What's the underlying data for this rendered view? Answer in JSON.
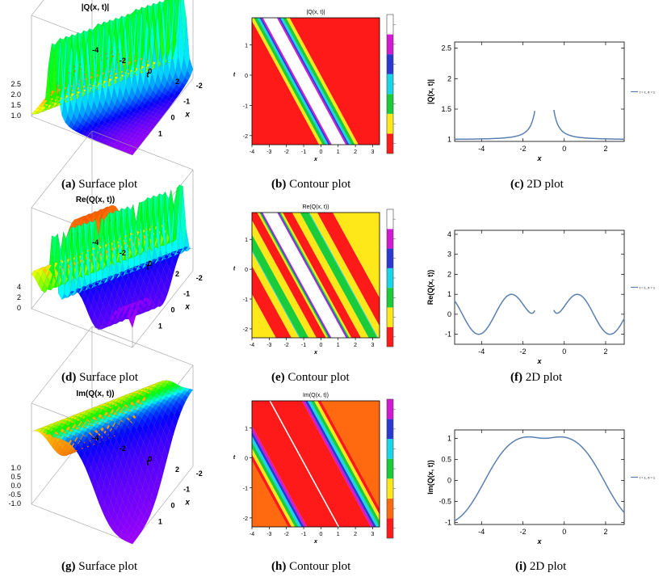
{
  "captions": {
    "a": {
      "tag": "(a)",
      "label": "Surface plot"
    },
    "b": {
      "tag": "(b)",
      "label": "Contour plot"
    },
    "c": {
      "tag": "(c)",
      "label": "2D plot"
    },
    "d": {
      "tag": "(d)",
      "label": "Surface plot"
    },
    "e": {
      "tag": "(e)",
      "label": "Contour plot"
    },
    "f": {
      "tag": "(f)",
      "label": "2D plot"
    },
    "g": {
      "tag": "(g)",
      "label": "Surface plot"
    },
    "h": {
      "tag": "(h)",
      "label": "Contour plot"
    },
    "i": {
      "tag": "(i)",
      "label": "2D plot"
    }
  },
  "titles": {
    "abs": "|Q(x, t)|",
    "re": "Re(Q(x, t))",
    "im": "Im(Q(x, t))"
  },
  "axis_names": {
    "x": "x",
    "t": "t"
  },
  "legend_text": "t = 1, δ = 1",
  "colors": {
    "line": "#5b7fb0",
    "red": "#ff1a1a",
    "yellow": "#ffe81a",
    "green": "#1acc3a",
    "cyan": "#1ad4e8",
    "blue": "#2a3ad0",
    "magenta": "#d21ad2",
    "orange": "#ff6a10",
    "white": "#ffffff"
  },
  "chart_data": [
    {
      "id": "c",
      "type": "line",
      "title": "",
      "xlabel": "x",
      "ylabel": "|Q(x, t)|",
      "xlim": [
        -5.3,
        2.9
      ],
      "ylim": [
        0.97,
        2.6
      ],
      "xticks": [
        -4,
        -2,
        0,
        2
      ],
      "yticks": [
        1.0,
        1.5,
        2.0,
        2.5
      ],
      "series": [
        {
          "name": "t = 1, δ = 1",
          "func": "abs",
          "params": {
            "xc": -0.96,
            "w": 0.38
          }
        }
      ]
    },
    {
      "id": "f",
      "type": "line",
      "title": "",
      "xlabel": "x",
      "ylabel": "Re(Q(x, t))",
      "xlim": [
        -5.3,
        2.9
      ],
      "ylim": [
        -1.5,
        4.2
      ],
      "xticks": [
        -4,
        -2,
        0,
        2
      ],
      "yticks": [
        -1,
        0,
        1,
        2,
        3,
        4
      ],
      "series": [
        {
          "name": "t = 1, δ = 1",
          "func": "re",
          "params": {
            "xc": -0.96
          }
        }
      ]
    },
    {
      "id": "i",
      "type": "line",
      "title": "",
      "xlabel": "x",
      "ylabel": "Im(Q(x, t))",
      "xlim": [
        -5.3,
        2.9
      ],
      "ylim": [
        -1.05,
        1.2
      ],
      "xticks": [
        -4,
        -2,
        0,
        2
      ],
      "yticks": [
        -1.0,
        -0.5,
        0.0,
        0.5,
        1.0
      ],
      "series": [
        {
          "name": "t = 1, δ = 1",
          "func": "im",
          "params": {
            "xc": -0.96
          }
        }
      ]
    },
    {
      "id": "b",
      "type": "heatmap",
      "title": "|Q(x, t)|",
      "xlabel": "x",
      "ylabel": "t",
      "xlim": [
        -4,
        3.4
      ],
      "ylim": [
        -2.3,
        1.9
      ],
      "xticks": [
        -4,
        -3,
        -2,
        -1,
        0,
        1,
        2,
        3
      ],
      "yticks": [
        -2,
        -1,
        0,
        1
      ],
      "bands": [
        {
          "from": -9.0,
          "to": -2.1,
          "color": "red"
        },
        {
          "from": -2.1,
          "to": -1.9,
          "color": "yellow"
        },
        {
          "from": -1.9,
          "to": -1.7,
          "color": "green"
        },
        {
          "from": -1.7,
          "to": -1.56,
          "color": "cyan"
        },
        {
          "from": -1.56,
          "to": -1.46,
          "color": "blue"
        },
        {
          "from": -1.46,
          "to": -1.36,
          "color": "magenta"
        },
        {
          "from": -1.36,
          "to": -0.56,
          "color": "white"
        },
        {
          "from": -0.56,
          "to": -0.46,
          "color": "magenta"
        },
        {
          "from": -0.46,
          "to": -0.36,
          "color": "blue"
        },
        {
          "from": -0.36,
          "to": -0.22,
          "color": "cyan"
        },
        {
          "from": -0.22,
          "to": -0.02,
          "color": "green"
        },
        {
          "from": -0.02,
          "to": 0.18,
          "color": "yellow"
        },
        {
          "from": 0.18,
          "to": 9.0,
          "color": "red"
        }
      ],
      "colorbar": [
        "red",
        "yellow",
        "green",
        "cyan",
        "blue",
        "magenta",
        "white"
      ]
    },
    {
      "id": "e",
      "type": "heatmap",
      "title": "Re(Q(x, t))",
      "xlabel": "x",
      "ylabel": "t",
      "xlim": [
        -4,
        3.4
      ],
      "ylim": [
        -2.3,
        1.9
      ],
      "xticks": [
        -4,
        -3,
        -2,
        -1,
        0,
        1,
        2,
        3
      ],
      "yticks": [
        -2,
        -1,
        0,
        1
      ],
      "bands": [
        {
          "from": -9.0,
          "to": -4.6,
          "color": "yellow"
        },
        {
          "from": -4.6,
          "to": -3.7,
          "color": "red"
        },
        {
          "from": -3.7,
          "to": -3.25,
          "color": "yellow"
        },
        {
          "from": -3.25,
          "to": -3.2,
          "color": "cyan"
        },
        {
          "from": -3.2,
          "to": -2.7,
          "color": "green"
        },
        {
          "from": -2.7,
          "to": -2.25,
          "color": "yellow"
        },
        {
          "from": -2.25,
          "to": -1.7,
          "color": "red"
        },
        {
          "from": -1.7,
          "to": -1.58,
          "color": "yellow"
        },
        {
          "from": -1.58,
          "to": -1.5,
          "color": "green"
        },
        {
          "from": -1.5,
          "to": -1.44,
          "color": "blue"
        },
        {
          "from": -1.44,
          "to": -1.38,
          "color": "magenta"
        },
        {
          "from": -1.38,
          "to": -0.54,
          "color": "white"
        },
        {
          "from": -0.54,
          "to": -0.48,
          "color": "magenta"
        },
        {
          "from": -0.48,
          "to": -0.42,
          "color": "blue"
        },
        {
          "from": -0.42,
          "to": -0.34,
          "color": "green"
        },
        {
          "from": -0.34,
          "to": -0.22,
          "color": "yellow"
        },
        {
          "from": -0.22,
          "to": 0.33,
          "color": "red"
        },
        {
          "from": 0.33,
          "to": 0.78,
          "color": "yellow"
        },
        {
          "from": 0.78,
          "to": 1.28,
          "color": "green"
        },
        {
          "from": 1.28,
          "to": 1.33,
          "color": "cyan"
        },
        {
          "from": 1.33,
          "to": 1.78,
          "color": "yellow"
        },
        {
          "from": 1.78,
          "to": 2.68,
          "color": "red"
        },
        {
          "from": 2.68,
          "to": 9.0,
          "color": "yellow"
        }
      ],
      "colorbar": [
        "red",
        "yellow",
        "green",
        "cyan",
        "blue",
        "magenta",
        "white"
      ]
    },
    {
      "id": "h",
      "type": "heatmap",
      "title": "Im(Q(x, t))",
      "xlabel": "x",
      "ylabel": "t",
      "xlim": [
        -4,
        3.4
      ],
      "ylim": [
        -2.3,
        1.9
      ],
      "xticks": [
        -4,
        -3,
        -2,
        -1,
        0,
        1,
        2,
        3
      ],
      "yticks": [
        -2,
        -1,
        0,
        1
      ],
      "bands": [
        {
          "from": -9.0,
          "to": -3.9,
          "color": "orange"
        },
        {
          "from": -3.9,
          "to": -3.7,
          "color": "red"
        },
        {
          "from": -3.7,
          "to": -3.5,
          "color": "yellow"
        },
        {
          "from": -3.5,
          "to": -3.3,
          "color": "green"
        },
        {
          "from": -3.3,
          "to": -3.12,
          "color": "cyan"
        },
        {
          "from": -3.12,
          "to": -2.96,
          "color": "blue"
        },
        {
          "from": -2.96,
          "to": -2.8,
          "color": "magenta"
        },
        {
          "from": -2.8,
          "to": -1.0,
          "color": "red"
        },
        {
          "from": -1.0,
          "to": -0.92,
          "color": "white"
        },
        {
          "from": -0.92,
          "to": 0.9,
          "color": "red"
        },
        {
          "from": 0.9,
          "to": 1.06,
          "color": "magenta"
        },
        {
          "from": 1.06,
          "to": 1.22,
          "color": "blue"
        },
        {
          "from": 1.22,
          "to": 1.4,
          "color": "cyan"
        },
        {
          "from": 1.4,
          "to": 1.6,
          "color": "green"
        },
        {
          "from": 1.6,
          "to": 1.8,
          "color": "yellow"
        },
        {
          "from": 1.8,
          "to": 2.0,
          "color": "red"
        },
        {
          "from": 2.0,
          "to": 9.0,
          "color": "orange"
        }
      ],
      "colorbar": [
        "red",
        "orange",
        "yellow",
        "green",
        "cyan",
        "blue",
        "magenta"
      ]
    },
    {
      "id": "a",
      "type": "surface",
      "title": "|Q(x, t)|",
      "func": "abs",
      "zticks": [
        "1.0",
        "1.5",
        "2.0",
        "2.5"
      ],
      "tticks": [
        "-4",
        "-2",
        "0",
        "2"
      ],
      "xticks": [
        "1",
        "0",
        "-1",
        "-2"
      ]
    },
    {
      "id": "d",
      "type": "surface",
      "title": "Re(Q(x, t))",
      "func": "re",
      "zticks": [
        "0",
        "2",
        "4"
      ],
      "tticks": [
        "-4",
        "-2",
        "0",
        "2"
      ],
      "xticks": [
        "1",
        "0",
        "-1",
        "-2"
      ]
    },
    {
      "id": "g",
      "type": "surface",
      "title": "Im(Q(x, t))",
      "func": "im",
      "zticks": [
        "-1.0",
        "-0.5",
        "0.0",
        "0.5",
        "1.0"
      ],
      "tticks": [
        "-4",
        "-2",
        "0",
        "2"
      ],
      "xticks": [
        "1",
        "0",
        "-1",
        "-2"
      ]
    }
  ]
}
